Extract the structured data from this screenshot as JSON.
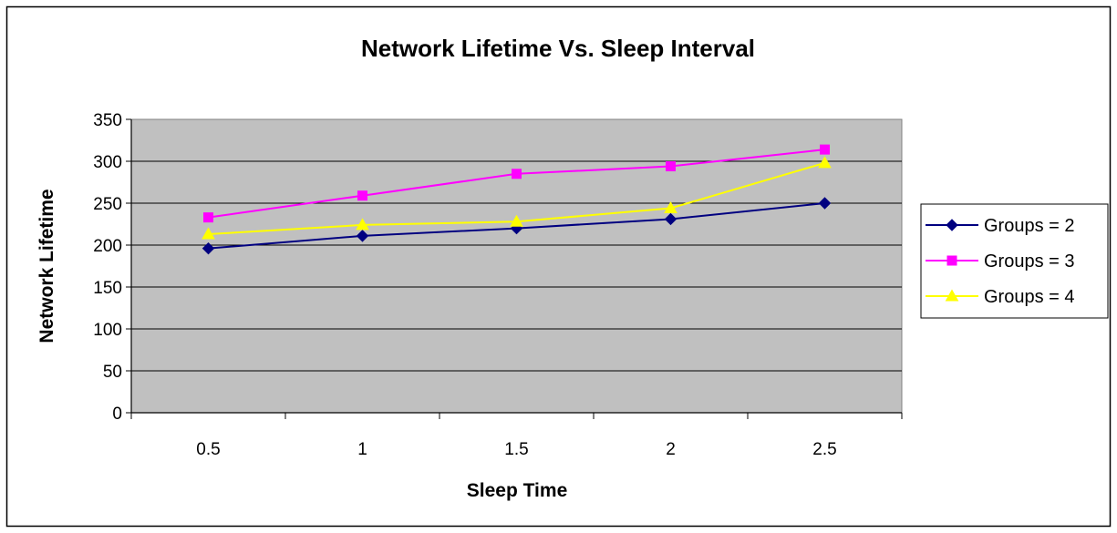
{
  "chart_data": {
    "type": "line",
    "title": "Network Lifetime Vs. Sleep Interval",
    "xlabel": "Sleep Time",
    "ylabel": "Network Lifetime",
    "categories": [
      "0.5",
      "1",
      "1.5",
      "2",
      "2.5"
    ],
    "ylim": [
      0,
      350
    ],
    "yticks": [
      0,
      50,
      100,
      150,
      200,
      250,
      300,
      350
    ],
    "grid": true,
    "legend_position": "right",
    "plot_background": "#c0c0c0",
    "series": [
      {
        "name": "Groups = 2",
        "values": [
          196,
          211,
          220,
          231,
          250
        ],
        "color": "#000080",
        "marker": "diamond"
      },
      {
        "name": "Groups = 3",
        "values": [
          233,
          259,
          285,
          294,
          314
        ],
        "color": "#ff00ff",
        "marker": "square"
      },
      {
        "name": "Groups = 4",
        "values": [
          213,
          224,
          228,
          244,
          298
        ],
        "color": "#ffff00",
        "marker": "triangle"
      }
    ]
  }
}
